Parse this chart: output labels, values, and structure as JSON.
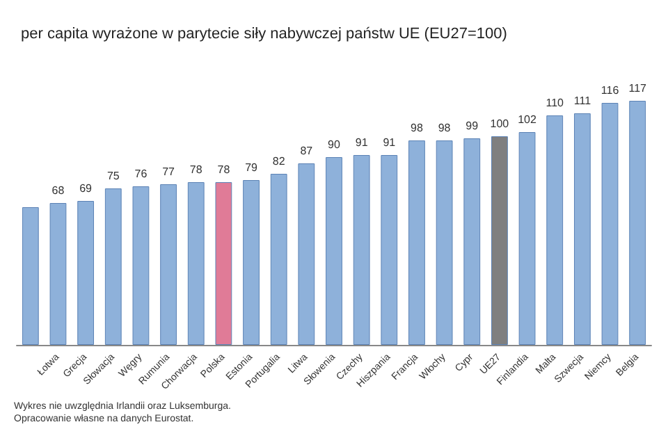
{
  "chart_data": {
    "type": "bar",
    "title": "per capita wyrażone w parytecie siły nabywczej państw UE (EU27=100)",
    "categories": [
      null,
      "Łotwa",
      "Grecja",
      "Słowacja",
      "Węgry",
      "Rumunia",
      "Chorwacja",
      "Polska",
      "Estonia",
      "Portugalia",
      "Litwa",
      "Słowenia",
      "Czechy",
      "Hiszpania",
      "Francja",
      "Włochy",
      "Cypr",
      "UE27",
      "Finlandia",
      "Malta",
      "Szwecja",
      "Niemcy",
      "Belgia"
    ],
    "values": [
      66,
      68,
      69,
      75,
      76,
      77,
      78,
      78,
      79,
      82,
      87,
      90,
      91,
      91,
      98,
      98,
      99,
      100,
      102,
      110,
      111,
      116,
      117
    ],
    "value_labels": [
      null,
      "68",
      "69",
      "75",
      "76",
      "77",
      "78",
      "78",
      "79",
      "82",
      "87",
      "90",
      "91",
      "91",
      "98",
      "98",
      "99",
      "100",
      "102",
      "110",
      "111",
      "116",
      "117"
    ],
    "colors": [
      "#8eb1da",
      "#8eb1da",
      "#8eb1da",
      "#8eb1da",
      "#8eb1da",
      "#8eb1da",
      "#8eb1da",
      "#e07b97",
      "#8eb1da",
      "#8eb1da",
      "#8eb1da",
      "#8eb1da",
      "#8eb1da",
      "#8eb1da",
      "#8eb1da",
      "#8eb1da",
      "#8eb1da",
      "#7f7f7f",
      "#8eb1da",
      "#8eb1da",
      "#8eb1da",
      "#8eb1da",
      "#8eb1da"
    ],
    "annotations": [
      "Wykres nie uwzględnia Irlandii oraz Luksemburga.",
      "Opracowanie własne na danych Eurostat."
    ]
  }
}
